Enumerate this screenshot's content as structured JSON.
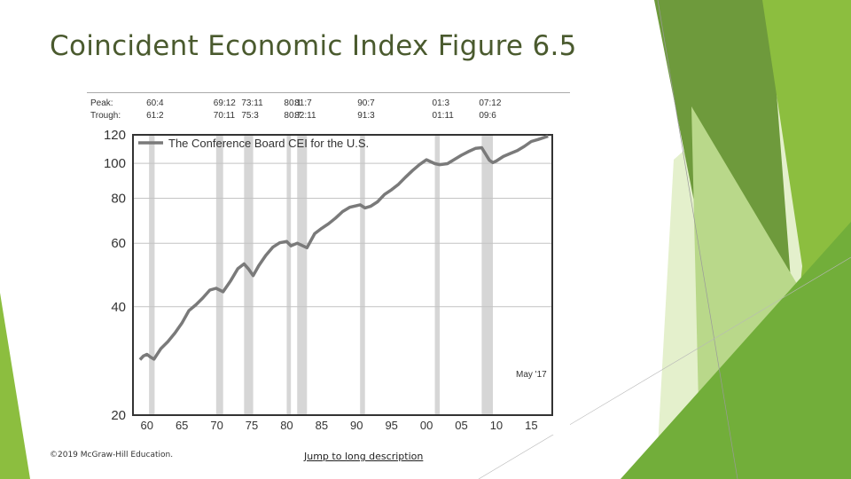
{
  "slide": {
    "title": "Coincident Economic Index Figure 6.5",
    "copyright": "©2019 McGraw-Hill Education.",
    "link_text": "Jump to long description"
  },
  "colors": {
    "title": "#4a5a2e",
    "green_dark": "#5f8f2f",
    "green_mid": "#7fb336",
    "green_light": "#9cc64b",
    "green_pale": "#d7e8b4",
    "line": "#7a7a7a",
    "recession": "#d6d6d6"
  },
  "chart_data": {
    "type": "line",
    "title": "",
    "xlabel": "",
    "ylabel": "",
    "y_scale": "log",
    "xlim": [
      1958,
      2018
    ],
    "ylim": [
      20,
      120
    ],
    "yticks": [
      20,
      40,
      60,
      80,
      100,
      120
    ],
    "xticks": [
      1960,
      1965,
      1970,
      1975,
      1980,
      1985,
      1990,
      1995,
      2000,
      2005,
      2010,
      2015
    ],
    "xtick_labels": [
      "60",
      "65",
      "70",
      "75",
      "80",
      "85",
      "90",
      "95",
      "00",
      "05",
      "10",
      "15"
    ],
    "grid": true,
    "legend": {
      "position": "top-left",
      "entries": [
        "The Conference Board CEI for the U.S."
      ]
    },
    "annotation": "May '17",
    "peak_label": "Peak:",
    "trough_label": "Trough:",
    "recessions": [
      {
        "peak": "60:4",
        "trough": "61:2",
        "start": 1960.3,
        "end": 1961.1
      },
      {
        "peak": "69:12",
        "trough": "70:11",
        "start": 1969.9,
        "end": 1970.9
      },
      {
        "peak": "73:11",
        "trough": "75:3",
        "start": 1973.9,
        "end": 1975.2
      },
      {
        "peak": "80:1",
        "trough": "80:7",
        "start": 1980.0,
        "end": 1980.6
      },
      {
        "peak": "81:7",
        "trough": "82:11",
        "start": 1981.5,
        "end": 1982.9
      },
      {
        "peak": "90:7",
        "trough": "91:3",
        "start": 1990.5,
        "end": 1991.2
      },
      {
        "peak": "01:3",
        "trough": "01:11",
        "start": 2001.2,
        "end": 2001.9
      },
      {
        "peak": "07:12",
        "trough": "09:6",
        "start": 2007.9,
        "end": 2009.5
      }
    ],
    "series": [
      {
        "name": "The Conference Board CEI for the U.S.",
        "x": [
          1959.0,
          1959.5,
          1960.0,
          1960.5,
          1961.0,
          1961.5,
          1962.0,
          1963.0,
          1964.0,
          1965.0,
          1966.0,
          1967.0,
          1968.0,
          1969.0,
          1969.9,
          1970.9,
          1972.0,
          1973.0,
          1973.9,
          1974.5,
          1975.2,
          1976.0,
          1977.0,
          1978.0,
          1979.0,
          1980.0,
          1980.6,
          1981.5,
          1982.9,
          1984.0,
          1985.0,
          1986.0,
          1987.0,
          1988.0,
          1989.0,
          1990.5,
          1991.2,
          1992.0,
          1993.0,
          1994.0,
          1995.0,
          1996.0,
          1997.0,
          1998.0,
          1999.0,
          2000.0,
          2001.2,
          2001.9,
          2003.0,
          2004.0,
          2005.0,
          2006.0,
          2007.0,
          2007.9,
          2009.0,
          2009.5,
          2010.0,
          2011.0,
          2012.0,
          2013.0,
          2014.0,
          2015.0,
          2016.0,
          2017.4
        ],
        "values": [
          28.5,
          29.2,
          29.5,
          29.0,
          28.6,
          29.6,
          30.6,
          32.0,
          33.8,
          36.0,
          39.0,
          40.5,
          42.3,
          44.5,
          45.0,
          44.0,
          47.3,
          51.0,
          52.6,
          51.0,
          48.8,
          52.0,
          55.5,
          58.5,
          60.2,
          60.7,
          59.0,
          60.0,
          58.3,
          63.8,
          66.0,
          68.0,
          70.5,
          73.5,
          75.5,
          76.7,
          75.2,
          76.0,
          78.2,
          82.0,
          84.5,
          87.5,
          91.5,
          95.5,
          99.2,
          102.3,
          99.8,
          99.2,
          99.8,
          102.5,
          105.3,
          107.8,
          110.0,
          110.5,
          102.0,
          100.5,
          101.5,
          104.5,
          106.5,
          108.5,
          111.5,
          115.0,
          116.5,
          119.0
        ]
      }
    ]
  }
}
